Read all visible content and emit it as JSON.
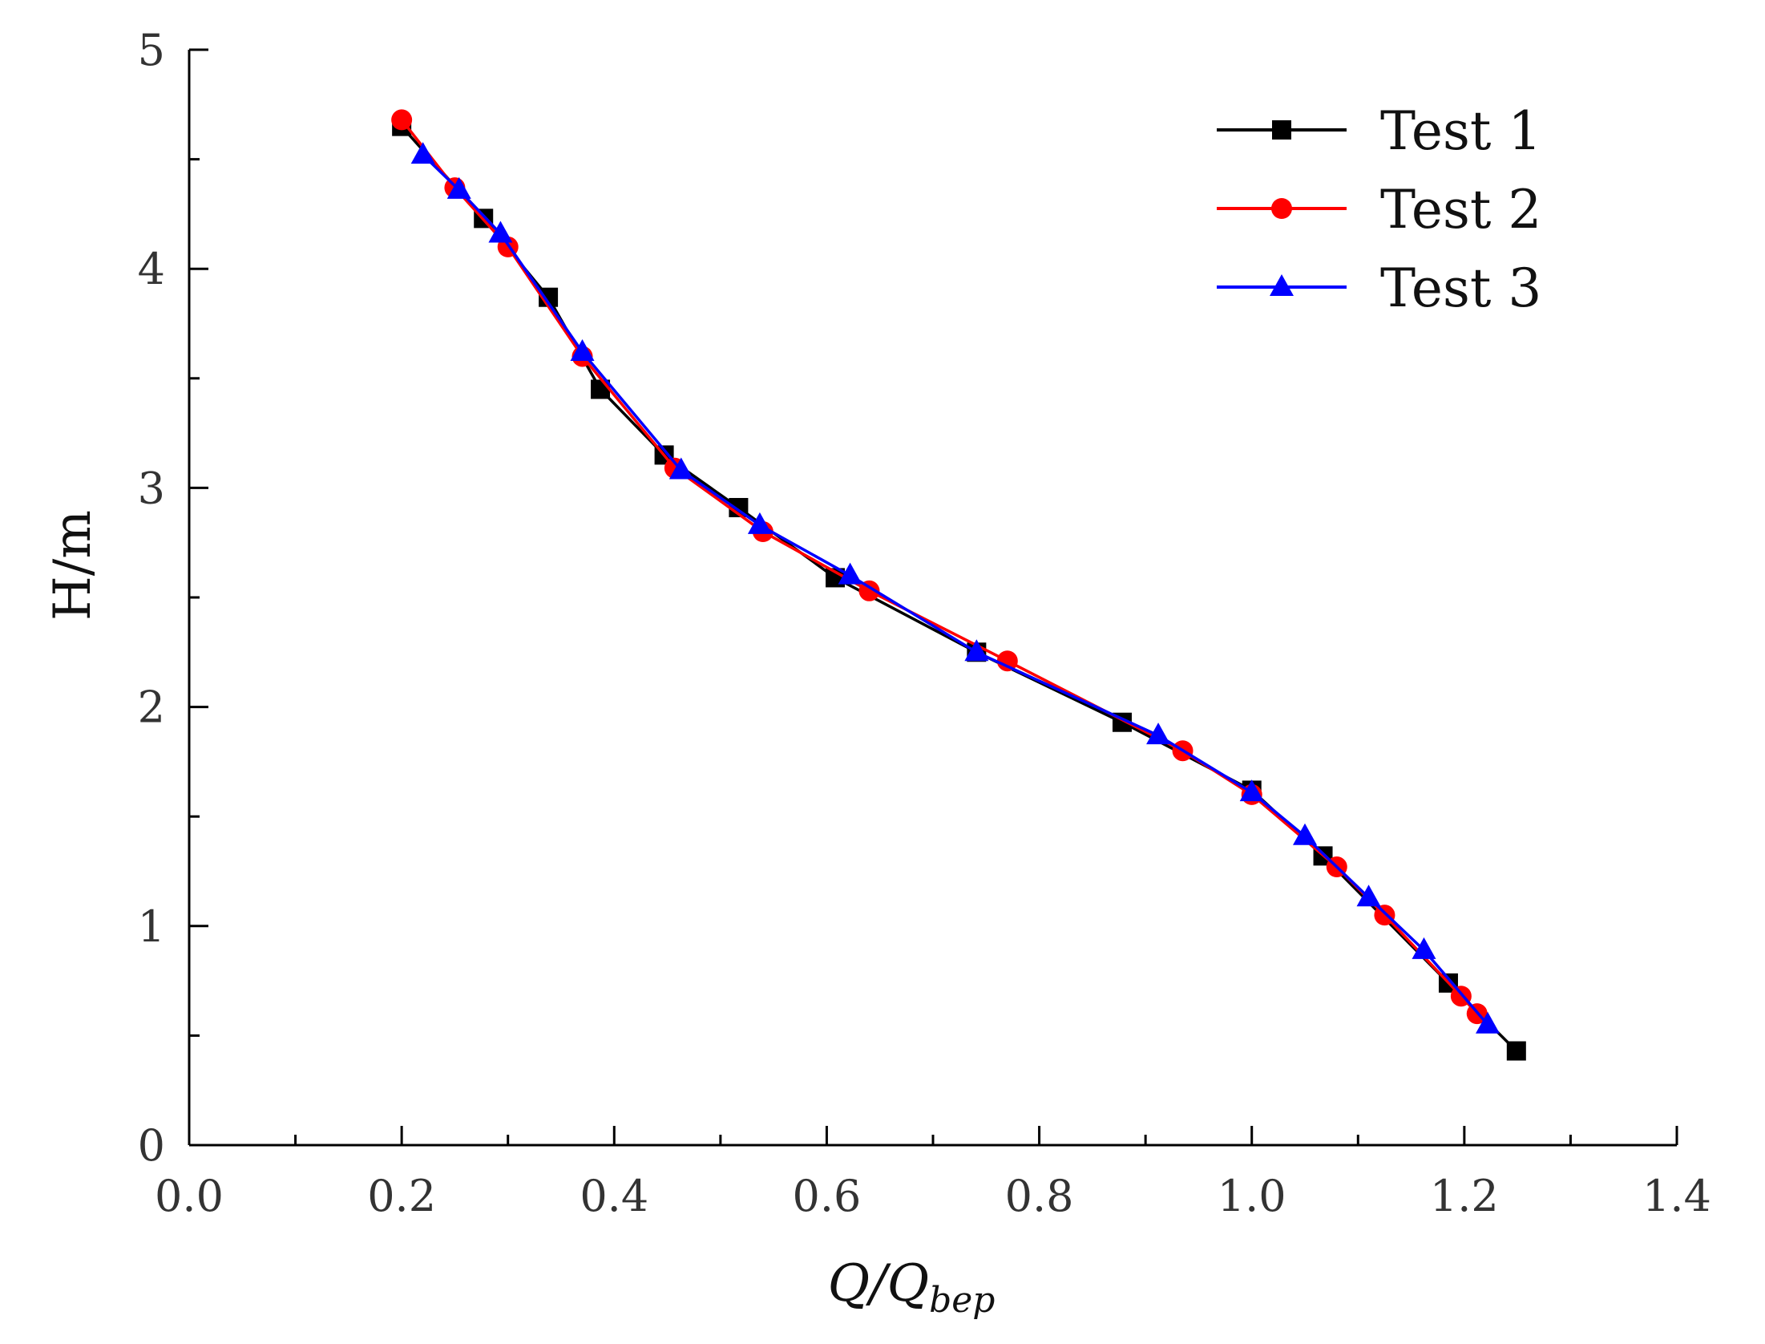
{
  "chart_data": {
    "type": "line",
    "title": "",
    "xlabel": {
      "main": "Q/Q",
      "sub": "bep"
    },
    "ylabel": "H/m",
    "xlim": [
      0.0,
      1.4
    ],
    "ylim": [
      0,
      5
    ],
    "x_ticks": [
      "0.0",
      "0.2",
      "0.4",
      "0.6",
      "0.8",
      "1.0",
      "1.2",
      "1.4"
    ],
    "x_tick_values": [
      0.0,
      0.2,
      0.4,
      0.6,
      0.8,
      1.0,
      1.2,
      1.4
    ],
    "y_ticks": [
      "0",
      "1",
      "2",
      "3",
      "4",
      "5"
    ],
    "y_tick_values": [
      0,
      1,
      2,
      3,
      4,
      5
    ],
    "grid": false,
    "legend_position": "top-right",
    "series": [
      {
        "name": "Test 1",
        "color": "#000000",
        "marker": "square",
        "x": [
          0.2,
          0.277,
          0.338,
          0.387,
          0.447,
          0.517,
          0.608,
          0.741,
          0.878,
          1.0,
          1.067,
          1.185,
          1.249
        ],
        "y": [
          4.65,
          4.23,
          3.87,
          3.45,
          3.15,
          2.91,
          2.59,
          2.25,
          1.93,
          1.62,
          1.32,
          0.74,
          0.43
        ]
      },
      {
        "name": "Test 2",
        "color": "#ff0000",
        "marker": "circle",
        "x": [
          0.2,
          0.25,
          0.3,
          0.37,
          0.457,
          0.54,
          0.64,
          0.77,
          0.935,
          1.0,
          1.08,
          1.125,
          1.197,
          1.212
        ],
        "y": [
          4.68,
          4.37,
          4.1,
          3.6,
          3.09,
          2.8,
          2.53,
          2.21,
          1.8,
          1.6,
          1.27,
          1.05,
          0.68,
          0.6
        ]
      },
      {
        "name": "Test 3",
        "color": "#0000ff",
        "marker": "triangle",
        "x": [
          0.22,
          0.254,
          0.293,
          0.37,
          0.463,
          0.537,
          0.622,
          0.741,
          0.912,
          1.0,
          1.05,
          1.11,
          1.162,
          1.222
        ],
        "y": [
          4.52,
          4.36,
          4.16,
          3.62,
          3.08,
          2.83,
          2.6,
          2.25,
          1.87,
          1.61,
          1.41,
          1.13,
          0.89,
          0.55
        ]
      }
    ]
  }
}
